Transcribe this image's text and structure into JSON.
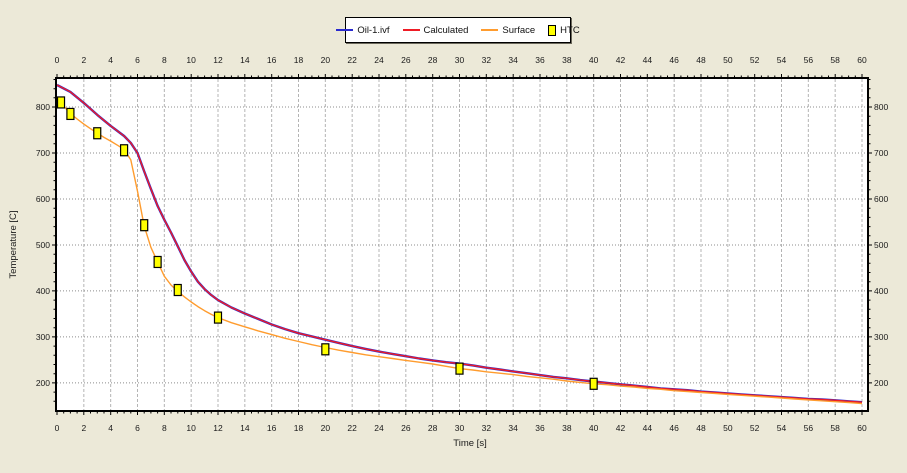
{
  "legend": {
    "items": [
      {
        "label": "Oil-1.ivf",
        "color": "#2a2ace",
        "swatch": "line"
      },
      {
        "label": "Calculated",
        "color": "#ee1c25",
        "swatch": "line"
      },
      {
        "label": "Surface",
        "color": "#ff9c2e",
        "swatch": "line"
      },
      {
        "label": "HTC",
        "color": "#ffff00",
        "swatch": "square"
      }
    ]
  },
  "colors": {
    "background": "#ece9d8",
    "plot_background": "#ffffff",
    "frame": "#000000",
    "grid_horizontal": "#8c8c8c",
    "grid_vertical": "#b4b4b4",
    "tick_text": "#1a1a1a",
    "marker_fill": "#ffff00",
    "marker_border": "#000000"
  },
  "chart_data": {
    "type": "line",
    "title": "",
    "xlabel": "Time [s]",
    "ylabel": "Temperature [C]",
    "xlim": [
      0,
      60
    ],
    "ylim": [
      141,
      861
    ],
    "x_tick_step": 2,
    "x_minor_step": 0.5,
    "y_ticks": [
      200,
      300,
      400,
      500,
      600,
      700,
      800
    ],
    "y_minor_step": 20,
    "grid": true,
    "legend_position": "top-center",
    "series": [
      {
        "name": "Oil-1.ivf",
        "color": "#2a2ace",
        "width": 2.4,
        "points": [
          [
            0,
            848
          ],
          [
            1,
            833
          ],
          [
            2,
            809
          ],
          [
            3,
            783
          ],
          [
            4,
            759
          ],
          [
            5,
            737
          ],
          [
            5.5,
            722
          ],
          [
            6,
            700
          ],
          [
            6.5,
            660
          ],
          [
            7,
            622
          ],
          [
            7.5,
            585
          ],
          [
            8,
            555
          ],
          [
            8.5,
            527
          ],
          [
            9,
            497
          ],
          [
            9.5,
            467
          ],
          [
            10,
            442
          ],
          [
            10.5,
            420
          ],
          [
            11,
            404
          ],
          [
            11.5,
            391
          ],
          [
            12,
            380
          ],
          [
            13,
            364
          ],
          [
            14,
            351
          ],
          [
            15,
            339
          ],
          [
            16,
            327
          ],
          [
            17,
            317
          ],
          [
            18,
            308
          ],
          [
            19,
            301
          ],
          [
            20,
            294
          ],
          [
            21,
            287
          ],
          [
            22,
            280
          ],
          [
            23,
            274
          ],
          [
            24,
            268
          ],
          [
            25,
            263
          ],
          [
            26,
            258
          ],
          [
            27,
            253
          ],
          [
            28,
            249
          ],
          [
            29,
            245
          ],
          [
            30,
            242
          ],
          [
            31,
            238
          ],
          [
            32,
            233
          ],
          [
            33,
            229
          ],
          [
            34,
            225
          ],
          [
            35,
            221
          ],
          [
            36,
            217
          ],
          [
            37,
            213
          ],
          [
            38,
            210
          ],
          [
            39,
            206
          ],
          [
            40,
            203
          ],
          [
            41,
            200
          ],
          [
            42,
            197
          ],
          [
            43,
            194
          ],
          [
            44,
            191
          ],
          [
            45,
            188
          ],
          [
            46,
            186
          ],
          [
            47,
            184
          ],
          [
            48,
            181
          ],
          [
            49,
            179
          ],
          [
            50,
            177
          ],
          [
            51,
            175
          ],
          [
            52,
            173
          ],
          [
            53,
            171
          ],
          [
            54,
            169
          ],
          [
            55,
            167
          ],
          [
            56,
            165
          ],
          [
            57,
            164
          ],
          [
            58,
            162
          ],
          [
            59,
            160
          ],
          [
            60,
            158
          ]
        ]
      },
      {
        "name": "Calculated",
        "color": "#ee1c25",
        "width": 1.4,
        "points": [
          [
            0,
            848
          ],
          [
            1,
            833
          ],
          [
            2,
            809
          ],
          [
            3,
            783
          ],
          [
            4,
            759
          ],
          [
            5,
            737
          ],
          [
            5.5,
            722
          ],
          [
            6,
            700
          ],
          [
            6.5,
            660
          ],
          [
            7,
            622
          ],
          [
            7.5,
            585
          ],
          [
            8,
            555
          ],
          [
            8.5,
            527
          ],
          [
            9,
            497
          ],
          [
            9.5,
            467
          ],
          [
            10,
            442
          ],
          [
            10.5,
            420
          ],
          [
            11,
            404
          ],
          [
            11.5,
            391
          ],
          [
            12,
            380
          ],
          [
            13,
            364
          ],
          [
            14,
            351
          ],
          [
            15,
            339
          ],
          [
            16,
            327
          ],
          [
            17,
            317
          ],
          [
            18,
            308
          ],
          [
            19,
            301
          ],
          [
            20,
            294
          ],
          [
            21,
            287
          ],
          [
            22,
            280
          ],
          [
            23,
            274
          ],
          [
            24,
            268
          ],
          [
            25,
            263
          ],
          [
            26,
            258
          ],
          [
            27,
            253
          ],
          [
            28,
            249
          ],
          [
            29,
            245
          ],
          [
            30,
            242
          ],
          [
            31,
            238
          ],
          [
            32,
            233
          ],
          [
            33,
            229
          ],
          [
            34,
            225
          ],
          [
            35,
            221
          ],
          [
            36,
            217
          ],
          [
            37,
            213
          ],
          [
            38,
            210
          ],
          [
            39,
            206
          ],
          [
            40,
            203
          ],
          [
            41,
            200
          ],
          [
            42,
            197
          ],
          [
            43,
            194
          ],
          [
            44,
            191
          ],
          [
            45,
            188
          ],
          [
            46,
            186
          ],
          [
            47,
            184
          ],
          [
            48,
            181
          ],
          [
            49,
            179
          ],
          [
            50,
            177
          ],
          [
            51,
            175
          ],
          [
            52,
            173
          ],
          [
            53,
            171
          ],
          [
            54,
            169
          ],
          [
            55,
            167
          ],
          [
            56,
            165
          ],
          [
            57,
            164
          ],
          [
            58,
            162
          ],
          [
            59,
            160
          ],
          [
            60,
            158
          ]
        ]
      },
      {
        "name": "Surface",
        "color": "#ff9c2e",
        "width": 1.4,
        "points": [
          [
            0,
            822
          ],
          [
            0.5,
            802
          ],
          [
            1,
            786
          ],
          [
            1.5,
            774
          ],
          [
            2,
            763
          ],
          [
            2.5,
            753
          ],
          [
            3,
            743
          ],
          [
            3.5,
            734
          ],
          [
            4,
            726
          ],
          [
            4.5,
            717
          ],
          [
            5,
            708
          ],
          [
            5.5,
            685
          ],
          [
            6,
            617
          ],
          [
            6.5,
            541
          ],
          [
            7,
            495
          ],
          [
            7.5,
            463
          ],
          [
            8,
            432
          ],
          [
            8.5,
            413
          ],
          [
            9,
            399
          ],
          [
            9.5,
            387
          ],
          [
            10,
            376
          ],
          [
            10.5,
            366
          ],
          [
            11,
            357
          ],
          [
            11.5,
            349
          ],
          [
            12,
            342
          ],
          [
            13,
            331
          ],
          [
            14,
            322
          ],
          [
            15,
            313
          ],
          [
            16,
            305
          ],
          [
            17,
            297
          ],
          [
            18,
            290
          ],
          [
            19,
            283
          ],
          [
            20,
            277
          ],
          [
            21,
            271
          ],
          [
            22,
            266
          ],
          [
            23,
            261
          ],
          [
            24,
            257
          ],
          [
            25,
            253
          ],
          [
            26,
            249
          ],
          [
            27,
            245
          ],
          [
            28,
            241
          ],
          [
            29,
            236
          ],
          [
            30,
            231
          ],
          [
            31,
            228
          ],
          [
            32,
            224
          ],
          [
            33,
            221
          ],
          [
            34,
            218
          ],
          [
            35,
            214
          ],
          [
            36,
            211
          ],
          [
            37,
            208
          ],
          [
            38,
            204
          ],
          [
            39,
            201
          ],
          [
            40,
            198
          ],
          [
            41,
            196
          ],
          [
            42,
            193
          ],
          [
            43,
            191
          ],
          [
            44,
            188
          ],
          [
            45,
            186
          ],
          [
            46,
            183
          ],
          [
            47,
            181
          ],
          [
            48,
            179
          ],
          [
            49,
            177
          ],
          [
            50,
            175
          ],
          [
            51,
            173
          ],
          [
            52,
            171
          ],
          [
            53,
            169
          ],
          [
            54,
            167
          ],
          [
            55,
            165
          ],
          [
            56,
            163
          ],
          [
            57,
            161
          ],
          [
            58,
            159
          ],
          [
            59,
            157
          ],
          [
            60,
            155
          ]
        ]
      }
    ],
    "markers": {
      "name": "HTC",
      "fill": "#ffff00",
      "border": "#000000",
      "points": [
        [
          0.3,
          810
        ],
        [
          1,
          785
        ],
        [
          3,
          743
        ],
        [
          5,
          706
        ],
        [
          6.5,
          543
        ],
        [
          7.5,
          463
        ],
        [
          9,
          402
        ],
        [
          12,
          342
        ],
        [
          20,
          273
        ],
        [
          30,
          231
        ],
        [
          40,
          198
        ]
      ]
    }
  }
}
